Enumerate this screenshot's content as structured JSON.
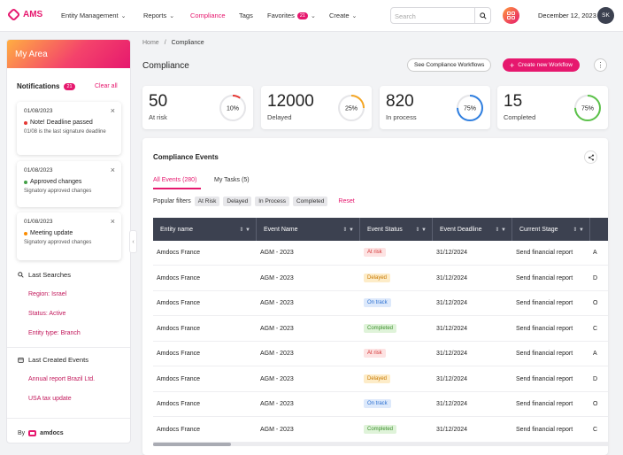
{
  "app": {
    "name": "AMS"
  },
  "nav": {
    "items": [
      "Entity Management",
      "Reports",
      "Compliance",
      "Tags",
      "Favorites",
      "Create"
    ],
    "favorites_count": "21",
    "active": "Compliance"
  },
  "search": {
    "placeholder": "Search",
    "value": ""
  },
  "header": {
    "date": "December 12, 2023",
    "user_initials": "SK"
  },
  "sidebar": {
    "title": "My Area",
    "notifications_label": "Notifications",
    "notifications_count": "21",
    "clear_all": "Clear all",
    "notifications": [
      {
        "date": "01/08/2023",
        "title": "Note! Deadline passed",
        "desc": "01/08 is the last signature deadline",
        "color": "#e53935"
      },
      {
        "date": "01/08/2023",
        "title": "Approved changes",
        "desc": "Signatory approved changes",
        "color": "#43a047"
      },
      {
        "date": "01/08/2023",
        "title": "Meeting update",
        "desc": "Signatory approved changes",
        "color": "#fb8c00"
      }
    ],
    "last_searches_label": "Last Searches",
    "last_searches": [
      "Region: Israel",
      "Status: Active",
      "Entity type: Branch"
    ],
    "last_events_label": "Last Created Events",
    "last_events": [
      "Annual report Brazil Ltd.",
      "USA tax update"
    ],
    "by_label": "By",
    "brand": "amdocs"
  },
  "breadcrumb": {
    "home": "Home",
    "current": "Compliance"
  },
  "page": {
    "title": "Compliance",
    "see_workflows": "See Compliance Workflows",
    "create_workflow": "Create new Workflow"
  },
  "kpis": [
    {
      "value": "50",
      "label": "At risk",
      "percent": 10,
      "percent_label": "10%",
      "color": "#e53935"
    },
    {
      "value": "12000",
      "label": "Delayed",
      "percent": 25,
      "percent_label": "25%",
      "color": "#f5a623"
    },
    {
      "value": "820",
      "label": "In process",
      "percent": 75,
      "percent_label": "75%",
      "color": "#2f7fe0"
    },
    {
      "value": "15",
      "label": "Completed",
      "percent": 75,
      "percent_label": "75%",
      "color": "#5cc24a"
    }
  ],
  "events": {
    "title": "Compliance Events",
    "tabs": [
      "All Events (280)",
      "My Tasks (5)"
    ],
    "popular_filters_label": "Popular filters",
    "filters": [
      "At Risk",
      "Delayed",
      "In Process",
      "Completed"
    ],
    "reset": "Reset",
    "columns": [
      "Entity name",
      "Event Name",
      "Event Status",
      "Event Deadline",
      "Current Stage"
    ],
    "rows": [
      {
        "entity": "Amdocs France",
        "event": "AGM - 2023",
        "status": "At risk",
        "deadline": "31/12/2024",
        "stage": "Send financial report",
        "extra": "A"
      },
      {
        "entity": "Amdocs France",
        "event": "AGM - 2023",
        "status": "Delayed",
        "deadline": "31/12/2024",
        "stage": "Send financial report",
        "extra": "D"
      },
      {
        "entity": "Amdocs France",
        "event": "AGM - 2023",
        "status": "On track",
        "deadline": "31/12/2024",
        "stage": "Send financial report",
        "extra": "O"
      },
      {
        "entity": "Amdocs France",
        "event": "AGM - 2023",
        "status": "Completed",
        "deadline": "31/12/2024",
        "stage": "Send financial report",
        "extra": "C"
      },
      {
        "entity": "Amdocs France",
        "event": "AGM - 2023",
        "status": "At risk",
        "deadline": "31/12/2024",
        "stage": "Send financial report",
        "extra": "A"
      },
      {
        "entity": "Amdocs France",
        "event": "AGM - 2023",
        "status": "Delayed",
        "deadline": "31/12/2024",
        "stage": "Send financial report",
        "extra": "D"
      },
      {
        "entity": "Amdocs France",
        "event": "AGM - 2023",
        "status": "On track",
        "deadline": "31/12/2024",
        "stage": "Send financial report",
        "extra": "O"
      },
      {
        "entity": "Amdocs France",
        "event": "AGM - 2023",
        "status": "Completed",
        "deadline": "31/12/2024",
        "stage": "Send financial report",
        "extra": "C"
      }
    ],
    "status_colors": {
      "At risk": {
        "bg": "#fde3e3",
        "fg": "#d32f2f"
      },
      "Delayed": {
        "bg": "#fdecc8",
        "fg": "#c77800"
      },
      "On track": {
        "bg": "#dde9fb",
        "fg": "#2a6fd1"
      },
      "Completed": {
        "bg": "#dff3d9",
        "fg": "#3c8f2c"
      }
    }
  },
  "colors": {
    "accent": "#e6186e",
    "table_header": "#3c4150"
  }
}
